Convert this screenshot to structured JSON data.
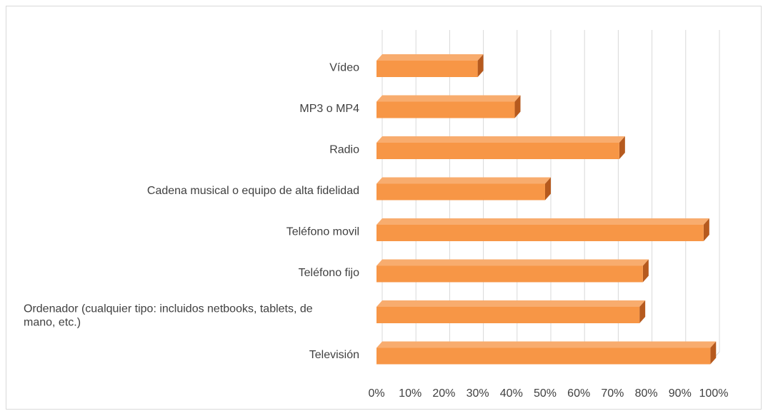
{
  "chart_data": {
    "type": "bar",
    "orientation": "horizontal",
    "title": "",
    "xlabel": "",
    "ylabel": "",
    "categories": [
      "Vídeo",
      "MP3 o MP4",
      "Radio",
      "Cadena musical o equipo de alta fidelidad",
      "Teléfono movil",
      "Teléfono fijo",
      "Ordenador (cualquier tipo: incluidos netbooks, tablets, de mano, etc.)",
      "Televisión"
    ],
    "category_lines": [
      [
        "Vídeo"
      ],
      [
        "MP3 o MP4"
      ],
      [
        "Radio"
      ],
      [
        "Cadena musical o equipo de alta fidelidad"
      ],
      [
        "Teléfono movil"
      ],
      [
        "Teléfono fijo"
      ],
      [
        "Ordenador (cualquier tipo: incluidos netbooks, tablets, de",
        "mano, etc.)"
      ],
      [
        "Televisión"
      ]
    ],
    "values": [
      30,
      41,
      72,
      50,
      97,
      79,
      78,
      99
    ],
    "xlim": [
      0,
      100
    ],
    "tick_labels": [
      "0%",
      "10%",
      "20%",
      "30%",
      "40%",
      "50%",
      "60%",
      "70%",
      "80%",
      "90%",
      "100%"
    ],
    "grid": true,
    "legend": "none",
    "style": "3d",
    "colors": {
      "bar_front": "#F79646",
      "bar_top": "#F8AC6E",
      "bar_side": "#B65A1E",
      "grid": "#D9D9D9",
      "text": "#404040"
    }
  }
}
